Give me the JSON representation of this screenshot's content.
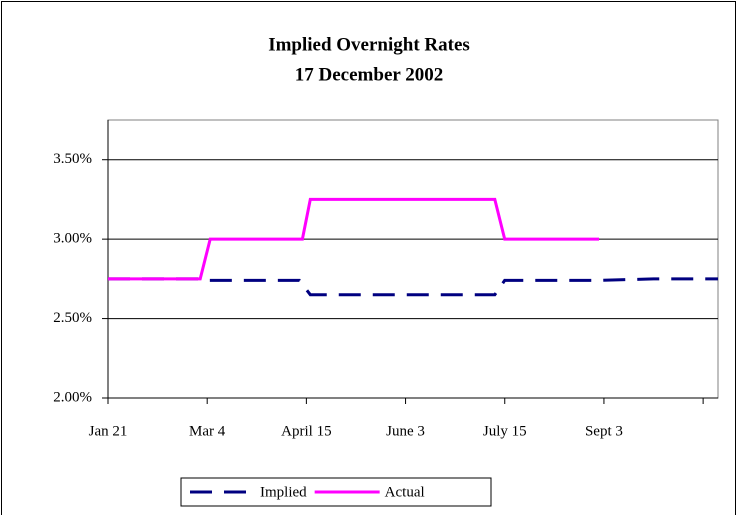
{
  "chart_data": {
    "type": "line",
    "title": "Implied Overnight Rates",
    "subtitle": "17 December 2002",
    "xlim": [
      0,
      6.15
    ],
    "xticks": [
      {
        "value": 0,
        "label": "Jan 21"
      },
      {
        "value": 1,
        "label": "Mar 4"
      },
      {
        "value": 2,
        "label": "April 15"
      },
      {
        "value": 3,
        "label": "June 3"
      },
      {
        "value": 4,
        "label": "July 15"
      },
      {
        "value": 5,
        "label": "Sept 3"
      },
      {
        "value": 6,
        "label": null
      }
    ],
    "ylim": [
      2,
      3.75
    ],
    "yticks": [
      {
        "value": 2,
        "label": "2.00%"
      },
      {
        "value": 2.5,
        "label": "2.50%"
      },
      {
        "value": 3,
        "label": "3.00%"
      },
      {
        "value": 3.5,
        "label": "3.50%"
      }
    ],
    "grid": true,
    "legend": "bottom",
    "series": [
      {
        "name": "Implied",
        "color": "#000080",
        "dashed": true,
        "x": [
          0,
          0.93,
          1.0,
          1.93,
          2.04,
          3.9,
          4.0,
          4.95,
          5.5,
          6.15
        ],
        "values": [
          2.75,
          2.75,
          2.74,
          2.74,
          2.65,
          2.65,
          2.74,
          2.74,
          2.75,
          2.75
        ]
      },
      {
        "name": "Actual",
        "color": "#ff00ff",
        "dashed": false,
        "x": [
          0,
          0.93,
          1.03,
          1.96,
          2.04,
          3.9,
          4.0,
          4.95
        ],
        "values": [
          2.75,
          2.75,
          3.0,
          3.0,
          3.25,
          3.25,
          3.0,
          3.0
        ]
      }
    ]
  }
}
